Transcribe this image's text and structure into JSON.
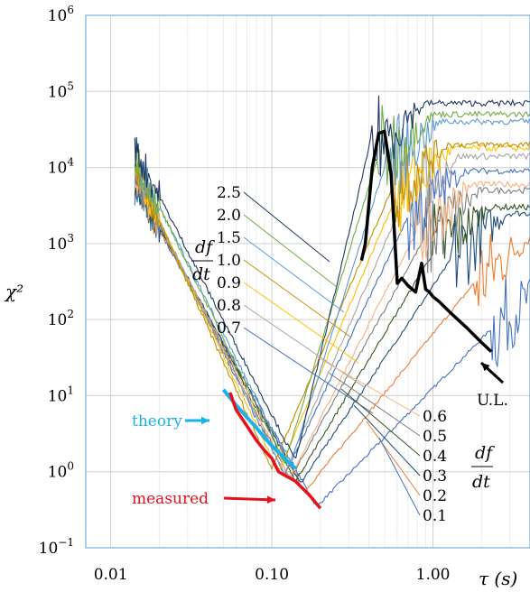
{
  "chart_data": {
    "type": "line",
    "title": "",
    "xlabel": "τ (s)",
    "ylabel": "χ²",
    "x_scale": "log",
    "y_scale": "log",
    "xlim": [
      0.007,
      4.0
    ],
    "ylim": [
      0.1,
      1000000
    ],
    "grid": true,
    "x_ticks": [
      {
        "value": 0.01,
        "label": "0.01"
      },
      {
        "value": 0.1,
        "label": "0.10"
      },
      {
        "value": 1,
        "label": "1.00"
      }
    ],
    "y_ticks": [
      {
        "value": 0.1,
        "base": "10",
        "exp": "−1"
      },
      {
        "value": 1,
        "base": "10",
        "exp": "0"
      },
      {
        "value": 10,
        "base": "10",
        "exp": "1"
      },
      {
        "value": 100,
        "base": "10",
        "exp": "2"
      },
      {
        "value": 1000,
        "base": "10",
        "exp": "3"
      },
      {
        "value": 10000,
        "base": "10",
        "exp": "4"
      },
      {
        "value": 100000,
        "base": "10",
        "exp": "5"
      },
      {
        "value": 1000000,
        "base": "10",
        "exp": "6"
      }
    ],
    "legend_title": "df/dt",
    "series": [
      {
        "name": "2.5",
        "color": "#1f3864",
        "start": 60000,
        "min_x": 0.14,
        "min_y": 1.4,
        "plateau": 70000,
        "noise_start": 0.4
      },
      {
        "name": "2.0",
        "color": "#70ad47",
        "start": 50000,
        "min_x": 0.12,
        "min_y": 1.3,
        "plateau": 50000,
        "noise_start": 0.45
      },
      {
        "name": "1.5",
        "color": "#5b9bd5",
        "start": 45000,
        "min_x": 0.13,
        "min_y": 1.2,
        "plateau": 40000,
        "noise_start": 0.5
      },
      {
        "name": "1.0",
        "color": "#bf9000",
        "start": 40000,
        "min_x": 0.1,
        "min_y": 1.1,
        "plateau": 20000,
        "noise_start": 0.55
      },
      {
        "name": "0.9",
        "color": "#ffc000",
        "start": 35000,
        "min_x": 0.11,
        "min_y": 1.0,
        "plateau": 18000,
        "noise_start": 0.6
      },
      {
        "name": "0.8",
        "color": "#a5a5a5",
        "start": 30000,
        "min_x": 0.12,
        "min_y": 0.95,
        "plateau": 14000,
        "noise_start": 0.65
      },
      {
        "name": "0.7",
        "color": "#4472c4",
        "start": 28000,
        "min_x": 0.12,
        "min_y": 0.9,
        "plateau": 9000,
        "noise_start": 0.7
      },
      {
        "name": "0.6",
        "color": "#f4b183",
        "start": 26000,
        "min_x": 0.13,
        "min_y": 0.85,
        "plateau": 6000,
        "noise_start": 0.8
      },
      {
        "name": "0.5",
        "color": "#7f7f7f",
        "start": 24000,
        "min_x": 0.13,
        "min_y": 0.8,
        "plateau": 5000,
        "noise_start": 0.9
      },
      {
        "name": "0.4",
        "color": "#375623",
        "start": 22000,
        "min_x": 0.14,
        "min_y": 0.75,
        "plateau": 3000,
        "noise_start": 1.0
      },
      {
        "name": "0.3",
        "color": "#1f4e79",
        "start": 20000,
        "min_x": 0.15,
        "min_y": 0.7,
        "plateau": 2500,
        "noise_start": 1.3
      },
      {
        "name": "0.2",
        "color": "#ed7d31",
        "start": 18000,
        "min_x": 0.16,
        "min_y": 0.55,
        "plateau": 1200,
        "noise_start": 1.8
      },
      {
        "name": "0.1",
        "color": "#4472c4",
        "start": 16000,
        "min_x": 0.19,
        "min_y": 0.35,
        "plateau": 300,
        "noise_start": 2.3
      }
    ],
    "measured": {
      "color": "#e8111b",
      "x": [
        0.055,
        0.06,
        0.07,
        0.08,
        0.09,
        0.1,
        0.11,
        0.12,
        0.14,
        0.17,
        0.2
      ],
      "y": [
        11,
        6.5,
        4,
        2.6,
        1.9,
        1.5,
        1.0,
        0.9,
        0.75,
        0.5,
        0.33
      ]
    },
    "theory": {
      "color": "#1ab3e8",
      "x": [
        0.05,
        0.06,
        0.07,
        0.08,
        0.09,
        0.1,
        0.12,
        0.14
      ],
      "y": [
        12,
        7.5,
        5.2,
        3.8,
        2.8,
        2.2,
        1.5,
        1.1
      ]
    },
    "upper_limit": {
      "color": "#000000",
      "x": [
        0.36,
        0.38,
        0.42,
        0.46,
        0.5,
        0.55,
        0.6,
        0.64,
        0.7,
        0.78,
        0.85,
        0.9,
        0.95,
        1.0,
        1.1,
        1.3,
        1.6,
        2.0,
        2.3
      ],
      "y": [
        600,
        1000,
        10000,
        28000,
        30000,
        8000,
        300,
        350,
        280,
        230,
        550,
        250,
        230,
        200,
        170,
        120,
        80,
        50,
        38
      ]
    },
    "annotations": {
      "theory": "theory",
      "measured": "measured",
      "upper_limit": "U.L."
    }
  }
}
